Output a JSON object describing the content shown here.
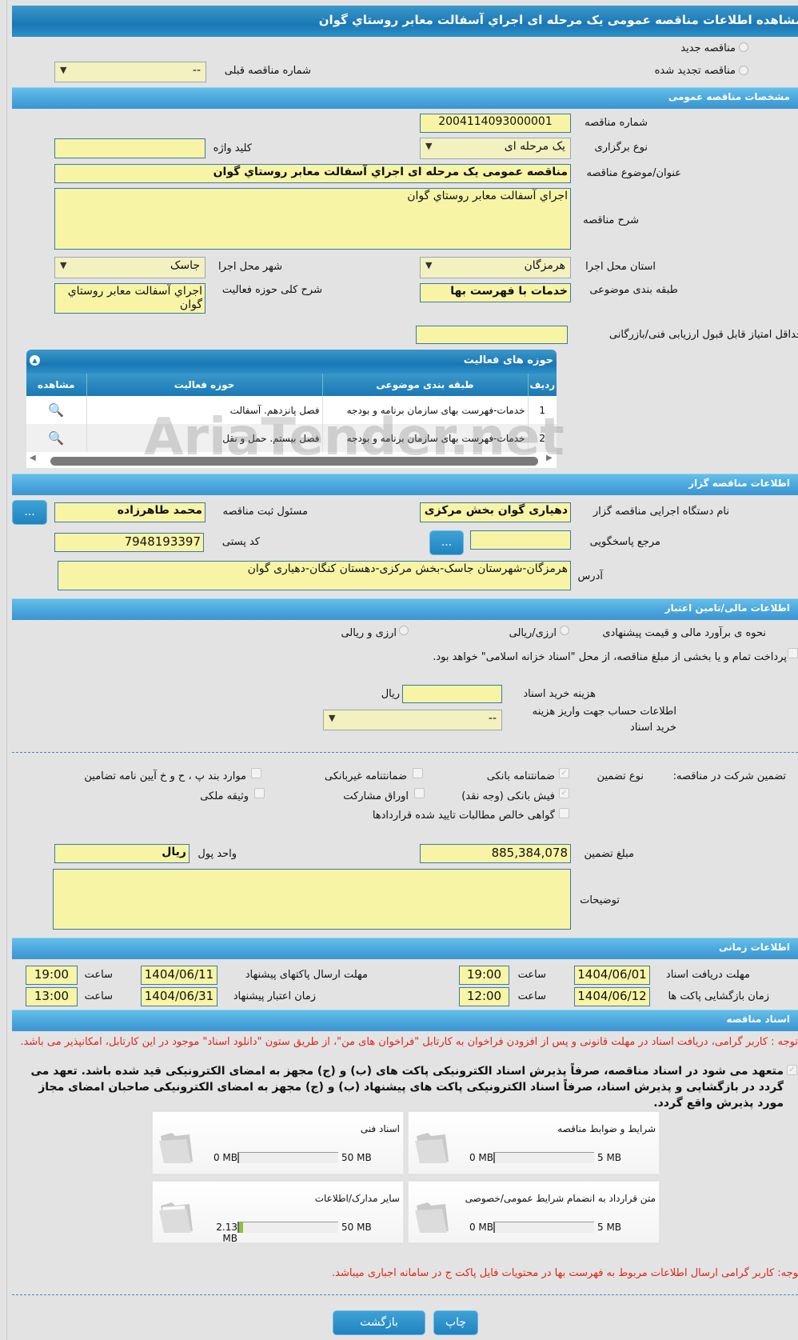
{
  "page_title": "مشاهده اطلاعات مناقصه عمومی یک مرحله ای اجراي آسفالت معابر روستاي گوان",
  "tender_type": {
    "new_label": "مناقصه جدید",
    "renewed_label": "مناقصه تجدید شده",
    "prev_number_label": "شماره مناقصه قبلی",
    "prev_number_value": "--"
  },
  "general": {
    "header": "مشخصات مناقصه عمومی",
    "number_label": "شماره مناقصه",
    "number_value": "2004114093000001",
    "holding_label": "نوع برگزاری",
    "holding_value": "یک مرحله ای",
    "keyword_label": "کلید واژه",
    "keyword_value": "",
    "subject_label": "عنوان/موضوع مناقصه",
    "subject_value": "مناقصه عمومی یک مرحله ای اجراي آسفالت معابر روستاي گوان",
    "desc_label": "شرح مناقصه",
    "desc_value": "اجراي آسفالت معابر روستاي گوان",
    "province_label": "استان محل اجرا",
    "province_value": "هرمزگان",
    "city_label": "شهر محل اجرا",
    "city_value": "جاسک",
    "category_label": "طبقه بندی موضوعی",
    "category_value": "خدمات با فهرست بها",
    "activity_desc_label": "شرح کلی حوزه فعالیت",
    "activity_desc_value": "اجراي آسفالت معابر روستاي گوان",
    "min_score_label": "حداقل امتیاز قابل قبول ارزیابی فنی/بازرگانی",
    "min_score_value": ""
  },
  "activities": {
    "header": "حوزه های فعالیت",
    "columns": [
      "ردیف",
      "طبقه بندی موضوعی",
      "حوزه فعالیت",
      "مشاهده"
    ],
    "rows": [
      {
        "idx": "1",
        "category": "خدمات-فهرست بهای سازمان برنامه و بودجه",
        "activity": "فصل پانزدهم. آسفالت"
      },
      {
        "idx": "2",
        "category": "خدمات-فهرست بهای سازمان برنامه و بودجه",
        "activity": "فصل بیستم. حمل و نقل"
      }
    ]
  },
  "watermark": "AriaTender.net",
  "organizer": {
    "header": "اطلاعات مناقصه گزار",
    "org_label": "نام دستگاه اجرایی مناقصه گزار",
    "org_value": "دهیاری گوان بخش مرکزی شهرستان جاسک",
    "resp_label": "مسئول ثبت مناقصه",
    "resp_value": "محمد طاهرزاده",
    "more": "...",
    "ref_label": "مرجع پاسخگویی",
    "ref_value": "",
    "postal_label": "کد پستی",
    "postal_value": "7948193397",
    "address_label": "آدرس",
    "address_value": "هرمزگان-شهرستان جاسک-بخش مرکزی-دهستان کنگان-دهیاری گوان"
  },
  "finance": {
    "header": "اطلاعات مالی/تامین اعتبار",
    "estimate_label": "نحوه ی برآورد مالی و قیمت پیشنهادی",
    "opt1": "ارزی/ریالی",
    "opt2": "ارزی و ریالی",
    "treasury_label": "پرداخت تمام و یا بخشی از مبلغ مناقصه، از محل \"اسناد خزانه اسلامی\" خواهد بود.",
    "doc_cost_label": "هزینه خرید اسناد",
    "doc_cost_value": "",
    "rial": "ریال",
    "account_label": "اطلاعات حساب جهت واریز هزینه خرید اسناد",
    "account_value": "--"
  },
  "guarantee": {
    "title": "تضمین شرکت در مناقصه:",
    "type_label": "نوع تضمین",
    "options": [
      {
        "label": "ضمانتنامه بانکی",
        "checked": true
      },
      {
        "label": "ضمانتنامه غیربانکی",
        "checked": false
      },
      {
        "label": "موارد بند پ ، ح و خ آیین نامه تضامین",
        "checked": false
      },
      {
        "label": "فیش بانکی (وجه نقد)",
        "checked": true
      },
      {
        "label": "اوراق مشارکت",
        "checked": false
      },
      {
        "label": "وثیقه ملکی",
        "checked": false
      },
      {
        "label": "گواهی خالص مطالبات تایید شده قراردادها",
        "checked": false
      }
    ],
    "amount_label": "مبلغ تضمین",
    "amount_value": "885,384,078",
    "unit_label": "واحد پول",
    "unit_value": "ریال",
    "notes_label": "توضیحات",
    "notes_value": ""
  },
  "timing": {
    "header": "اطلاعات زمانی",
    "hour": "ساعت",
    "doc_receive_label": "مهلت دریافت اسناد",
    "doc_receive_date": "1404/06/01",
    "doc_receive_time": "19:00",
    "submit_label": "مهلت ارسال پاکتهای پیشنهاد",
    "submit_date": "1404/06/11",
    "submit_time": "19:00",
    "open_label": "زمان بازگشایی پاکت ها",
    "open_date": "1404/06/12",
    "open_time": "12:00",
    "validity_label": "زمان اعتبار پیشنهاد",
    "validity_date": "1404/06/31",
    "validity_time": "13:00"
  },
  "documents": {
    "header": "اسناد مناقصه",
    "note1": "توجه : کاربر گرامی، دریافت اسناد در مهلت قانونی و پس از افزودن فراخوان به کارتابل \"فراخوان های من\"، از طریق ستون \"دانلود اسناد\" موجود در این کارتابل، امکانپذیر می باشد.",
    "commit": "متعهد می شود در اسناد مناقصه، صرفاً پذیرش اسناد الکترونیکی پاکت های (ب) و (ج) مجهز به امضای الکترونیکی قید شده باشد. تعهد می گردد در بازگشایی و پذیرش اسناد، صرفاً اسناد الکترونیکی پاکت های پیشنهاد (ب) و (ج) مجهز به امضای الکترونیکی صاحبان امضای مجاز مورد پذیرش واقع گردد.",
    "files": [
      {
        "title": "شرایط و ضوابط مناقصه",
        "used": "0 MB",
        "max": "5 MB",
        "fill_percent": 0
      },
      {
        "title": "اسناد فنی",
        "used": "0 MB",
        "max": "50 MB",
        "fill_percent": 0
      },
      {
        "title": "متن قرارداد به انضمام شرایط عمومی/خصوصی",
        "used": "0 MB",
        "max": "5 MB",
        "fill_percent": 0
      },
      {
        "title": "سایر مدارک/اطلاعات",
        "used": "2.13 MB",
        "max": "50 MB",
        "fill_percent": 4.3
      }
    ],
    "note2": "توجه: کاربر گرامی ارسال اطلاعات مربوط به فهرست بها در محتویات فایل پاکت ج در سامانه اجباری میباشد."
  },
  "buttons": {
    "back": "بازگشت",
    "print": "چاپ"
  },
  "colors": {
    "header_blue": "#4aa6dc",
    "field_yellow": "#f7f5a5",
    "note_red": "#e0241a"
  }
}
